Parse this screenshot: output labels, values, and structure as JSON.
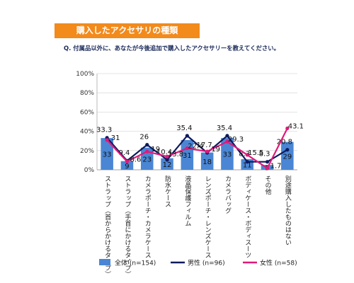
{
  "header": {
    "banner": "購入したアクセサリの種類",
    "question": "Q. 付属品以外に、あなたが今後追加で購入したアクセサリーを教えてください。"
  },
  "chart_data": {
    "type": "bar",
    "categories": [
      "ストラップ（首からかけるタイプ）",
      "ストラップ（手首にかけるタイプ）",
      "カメラポーチ・カメラケース",
      "防水ケース",
      "液晶保護フィルム",
      "レンズポーチ・レンズケース",
      "カメラバッグ",
      "ボディケース・ボディスーツ",
      "その他",
      "別途購入したものはない"
    ],
    "y_ticks": [
      "100%",
      "80%",
      "60%",
      "40%",
      "20%",
      "0%"
    ],
    "ylim": [
      0,
      100
    ],
    "series": [
      {
        "name": "全体 (n=154)",
        "type": "bar",
        "color": "#4a86d4",
        "values": [
          33,
          9,
          23,
          12,
          31,
          18,
          33,
          11,
          5,
          29
        ]
      },
      {
        "name": "男性 (n=96)",
        "type": "line",
        "color": "#0d1a5e",
        "values": [
          33.3,
          9.4,
          26,
          10.4,
          35.4,
          17.7,
          35.4,
          8.3,
          8.3,
          20.8
        ]
      },
      {
        "name": "女性 (n=58)",
        "type": "line",
        "color": "#e0197a",
        "values": [
          31,
          8.6,
          19,
          13.8,
          22.4,
          19,
          29.3,
          15.5,
          1.7,
          43.1
        ]
      }
    ],
    "bar_labels": [
      "33",
      "9",
      "23",
      "12",
      "31",
      "18",
      "33",
      "11",
      "5",
      "29"
    ],
    "male_labels": [
      "33.3",
      "9.4",
      "26",
      "10.4",
      "35.4",
      "17.7",
      "35.4",
      "8.3",
      "8.3",
      "20.8"
    ],
    "female_labels": [
      "31",
      "8.6",
      "19",
      "13.8",
      "22.4",
      "19",
      "29.3",
      "15.5",
      "1.7",
      "43.1"
    ]
  }
}
